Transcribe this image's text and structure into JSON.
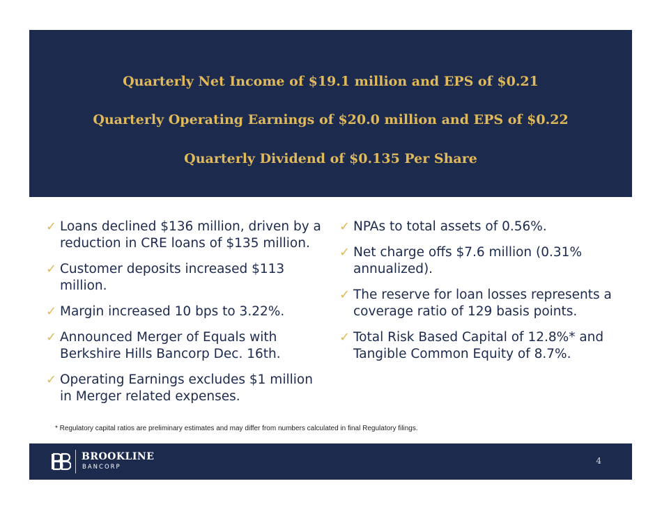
{
  "banner": {
    "headlines": [
      "Quarterly Net Income of $19.1 million and EPS of $0.21",
      "Quarterly Operating Earnings of $20.0 million and EPS of $0.22",
      "Quarterly Dividend of $0.135 Per Share"
    ]
  },
  "check_symbol": "✓",
  "left_bullets": [
    "Loans declined $136 million, driven by a reduction in CRE loans of $135 million.",
    "Customer deposits increased $113 million.",
    "Margin increased 10 bps to 3.22%.",
    "Announced Merger of Equals with Berkshire Hills Bancorp Dec. 16th.",
    "Operating Earnings excludes $1 million in Merger related expenses."
  ],
  "right_bullets": [
    "NPAs to total assets of 0.56%.",
    "Net charge offs $7.6 million (0.31% annualized).",
    "The reserve for loan losses represents a coverage ratio of 129 basis points.",
    "Total Risk Based Capital of 12.8%* and Tangible Common Equity of 8.7%."
  ],
  "footnote": "* Regulatory capital ratios are preliminary estimates and may differ from numbers calculated in final Regulatory filings.",
  "footer": {
    "logo_name": "BROOKLINE",
    "logo_sub": "BANCORP",
    "page_number": "4"
  },
  "colors": {
    "navy": "#1c2a4e",
    "gold": "#e0b95a"
  }
}
